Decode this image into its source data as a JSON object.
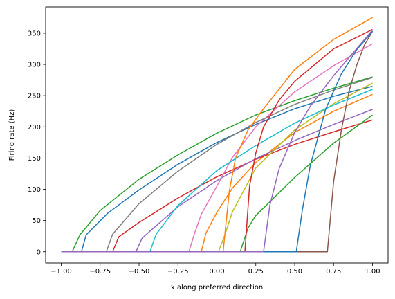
{
  "chart_data": {
    "type": "line",
    "title": "",
    "xlabel": "x along preferred direction",
    "ylabel": "Firing rate (Hz)",
    "xlim": [
      -1.1,
      1.1
    ],
    "ylim": [
      -18,
      392
    ],
    "xticks": [
      -1.0,
      -0.75,
      -0.5,
      -0.25,
      0.0,
      0.25,
      0.5,
      0.75,
      1.0
    ],
    "xtick_labels": [
      "−1.00",
      "−0.75",
      "−0.50",
      "−0.25",
      "0.00",
      "0.25",
      "0.50",
      "0.75",
      "1.00"
    ],
    "yticks": [
      0,
      50,
      100,
      150,
      200,
      250,
      300,
      350
    ],
    "ytick_labels": [
      "0",
      "50",
      "100",
      "150",
      "200",
      "250",
      "300",
      "350"
    ],
    "grid": false,
    "legend": "none",
    "series": [
      {
        "color": "#1f77b4",
        "x": [
          -1.0,
          -0.87,
          -0.84,
          -0.7,
          -0.5,
          -0.25,
          0.0,
          0.25,
          0.5,
          0.75,
          1.0
        ],
        "y": [
          0,
          0,
          27,
          62,
          99,
          140,
          175,
          204,
          229,
          249,
          265
        ]
      },
      {
        "color": "#ff7f0e",
        "x": [
          -1.0,
          -0.1,
          -0.07,
          0.0,
          0.1,
          0.25,
          0.5,
          0.75,
          1.0
        ],
        "y": [
          0,
          0,
          30,
          63,
          102,
          143,
          191,
          225,
          252
        ]
      },
      {
        "color": "#2ca02c",
        "x": [
          -1.0,
          -0.93,
          -0.88,
          -0.75,
          -0.5,
          -0.25,
          0.0,
          0.25,
          0.5,
          0.75,
          1.0
        ],
        "y": [
          0,
          0,
          27,
          66,
          116,
          155,
          190,
          219,
          242,
          262,
          280
        ]
      },
      {
        "color": "#d62728",
        "x": [
          -1.0,
          -0.67,
          -0.63,
          -0.5,
          -0.25,
          0.0,
          0.25,
          0.5,
          0.75,
          1.0
        ],
        "y": [
          0,
          0,
          24,
          47,
          86,
          120,
          148,
          172,
          192,
          211
        ]
      },
      {
        "color": "#9467bd",
        "x": [
          -1.0,
          -0.52,
          -0.48,
          -0.25,
          0.0,
          0.25,
          0.5,
          0.75,
          1.0
        ],
        "y": [
          0,
          0,
          22,
          72,
          114,
          149,
          178,
          204,
          228
        ]
      },
      {
        "color": "#8c564b",
        "x": [
          -1.0,
          0.71,
          0.75,
          0.8,
          0.85,
          0.9,
          0.95,
          1.0
        ],
        "y": [
          0,
          0,
          112,
          195,
          258,
          300,
          332,
          353
        ]
      },
      {
        "color": "#e377c2",
        "x": [
          -1.0,
          -0.18,
          -0.14,
          -0.1,
          0.0,
          0.1,
          0.25,
          0.5,
          0.75,
          1.0
        ],
        "y": [
          0,
          0,
          32,
          60,
          105,
          151,
          200,
          256,
          298,
          333
        ]
      },
      {
        "color": "#7f7f7f",
        "x": [
          -1.0,
          -0.71,
          -0.67,
          -0.5,
          -0.25,
          0.0,
          0.25,
          0.5,
          0.75,
          1.0
        ],
        "y": [
          0,
          0,
          28,
          77,
          129,
          172,
          207,
          236,
          259,
          279
        ]
      },
      {
        "color": "#bcbd22",
        "x": [
          -1.0,
          0.01,
          0.05,
          0.1,
          0.25,
          0.5,
          0.75,
          1.0
        ],
        "y": [
          0,
          0,
          26,
          64,
          134,
          195,
          237,
          270
        ]
      },
      {
        "color": "#17becf",
        "x": [
          -1.0,
          -0.43,
          -0.39,
          -0.25,
          0.0,
          0.25,
          0.5,
          0.75,
          1.0
        ],
        "y": [
          0,
          0,
          28,
          74,
          130,
          170,
          206,
          235,
          260
        ]
      },
      {
        "color": "#1f77b4",
        "x": [
          -1.0,
          0.51,
          0.55,
          0.6,
          0.7,
          0.8,
          0.9,
          1.0
        ],
        "y": [
          0,
          0,
          68,
          138,
          229,
          285,
          324,
          353
        ]
      },
      {
        "color": "#ff7f0e",
        "x": [
          -1.0,
          0.04,
          0.08,
          0.12,
          0.2,
          0.3,
          0.5,
          0.75,
          1.0
        ],
        "y": [
          0,
          0,
          97,
          150,
          195,
          229,
          292,
          340,
          375
        ]
      },
      {
        "color": "#2ca02c",
        "x": [
          -1.0,
          0.15,
          0.2,
          0.25,
          0.5,
          0.75,
          1.0
        ],
        "y": [
          0,
          0,
          38,
          58,
          119,
          174,
          219
        ]
      },
      {
        "color": "#d62728",
        "x": [
          -1.0,
          0.18,
          0.21,
          0.25,
          0.3,
          0.4,
          0.5,
          0.75,
          1.0
        ],
        "y": [
          0,
          0,
          105,
          158,
          200,
          243,
          273,
          325,
          356
        ]
      },
      {
        "color": "#9467bd",
        "x": [
          -1.0,
          0.3,
          0.34,
          0.4,
          0.5,
          0.6,
          0.75,
          1.0
        ],
        "y": [
          0,
          0,
          74,
          133,
          191,
          233,
          282,
          355
        ]
      }
    ]
  }
}
